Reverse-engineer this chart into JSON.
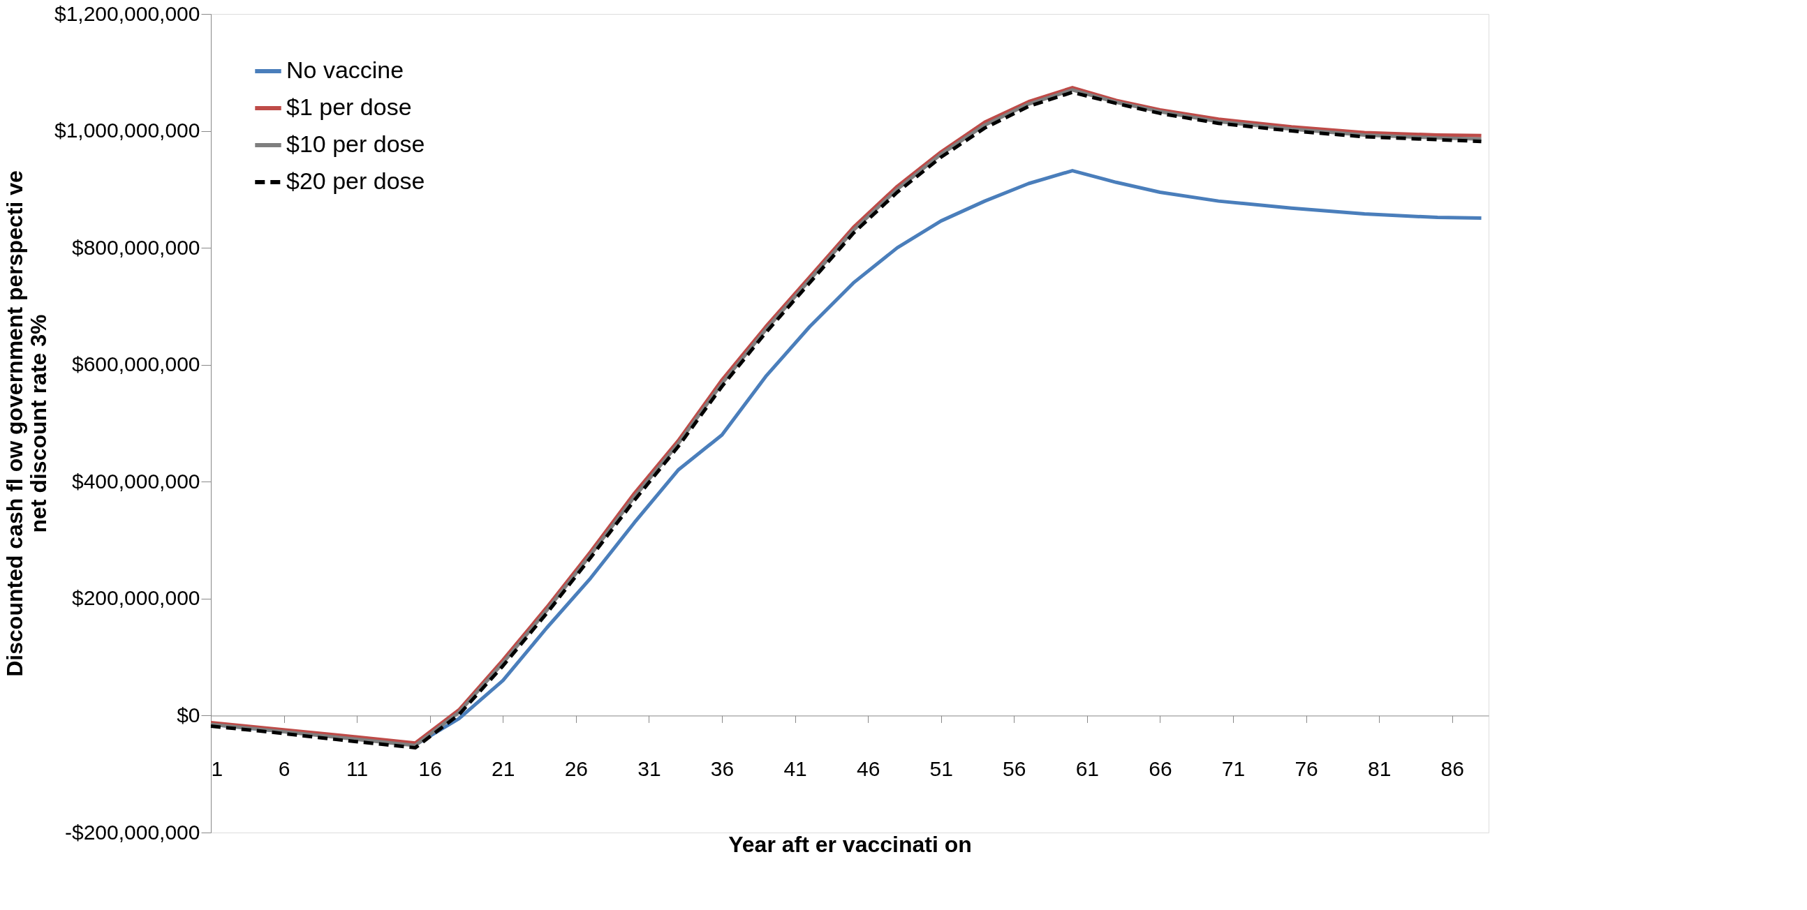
{
  "chart_data": {
    "type": "line",
    "xlabel": "Year aft er vaccinati on",
    "ylabel": "Discounted cash fl ow government perspecti ve net discount rate 3%",
    "xlim": [
      1,
      88.5
    ],
    "xticks": [
      1,
      6,
      11,
      16,
      21,
      26,
      31,
      36,
      41,
      46,
      51,
      56,
      61,
      66,
      71,
      76,
      81,
      86
    ],
    "ylim": [
      -200000000,
      1200000000
    ],
    "yticks": [
      {
        "value": -200000000,
        "label": "-$200,000,000"
      },
      {
        "value": 0,
        "label": "$0"
      },
      {
        "value": 200000000,
        "label": "$200,000,000"
      },
      {
        "value": 400000000,
        "label": "$400,000,000"
      },
      {
        "value": 600000000,
        "label": "$600,000,000"
      },
      {
        "value": 800000000,
        "label": "$800,000,000"
      },
      {
        "value": 1000000000,
        "label": "$1,000,000,000"
      },
      {
        "value": 1200000000,
        "label": "$1,200,000,000"
      }
    ],
    "grid": false,
    "legend": "top left",
    "x": [
      1,
      5,
      10,
      15,
      18,
      21,
      24,
      27,
      30,
      33,
      36,
      39,
      42,
      45,
      48,
      51,
      54,
      57,
      60,
      63,
      66,
      70,
      75,
      80,
      85,
      88
    ],
    "series": [
      {
        "name": "No vaccine",
        "color": "#4a7ebb",
        "line_style": "solid",
        "values": [
          -15000000,
          -25000000,
          -37000000,
          -50000000,
          -5000000,
          60000000,
          150000000,
          235000000,
          330000000,
          420000000,
          480000000,
          580000000,
          665000000,
          740000000,
          800000000,
          846000000,
          880000000,
          910000000,
          932000000,
          912000000,
          895000000,
          880000000,
          868000000,
          858000000,
          852000000,
          851000000
        ]
      },
      {
        "name": "$1 per dose",
        "color": "#be4b48",
        "line_style": "solid",
        "values": [
          -12000000,
          -22000000,
          -34000000,
          -47000000,
          10000000,
          95000000,
          185000000,
          280000000,
          380000000,
          470000000,
          574000000,
          665000000,
          750000000,
          835000000,
          905000000,
          964000000,
          1015000000,
          1050000000,
          1074000000,
          1052000000,
          1036000000,
          1020000000,
          1007000000,
          997000000,
          993000000,
          992000000
        ]
      },
      {
        "name": "$10 per dose",
        "color": "#7f7f7f",
        "line_style": "solid",
        "values": [
          -15000000,
          -25000000,
          -38000000,
          -51000000,
          6000000,
          90000000,
          180000000,
          275000000,
          374000000,
          465000000,
          568000000,
          660000000,
          745000000,
          830000000,
          900000000,
          960000000,
          1010000000,
          1046000000,
          1070000000,
          1049000000,
          1033000000,
          1016000000,
          1003000000,
          993000000,
          988000000,
          986000000
        ]
      },
      {
        "name": "$20 per dose",
        "color": "#000000",
        "line_style": "dashed",
        "values": [
          -18000000,
          -28000000,
          -42000000,
          -55000000,
          2000000,
          85000000,
          175000000,
          270000000,
          368000000,
          460000000,
          563000000,
          655000000,
          740000000,
          825000000,
          895000000,
          955000000,
          1005000000,
          1042000000,
          1066000000,
          1047000000,
          1030000000,
          1013000000,
          1000000000,
          990000000,
          985000000,
          982000000
        ]
      }
    ]
  }
}
